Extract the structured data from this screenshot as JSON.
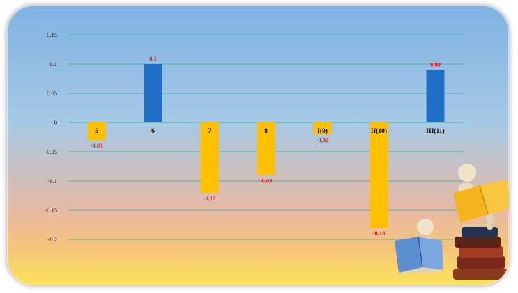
{
  "chart_data": {
    "type": "bar",
    "title": "",
    "xlabel": "",
    "ylabel": "",
    "ylim": [
      -0.2,
      0.15
    ],
    "y_ticks": [
      "0.15",
      "0.1",
      "0.05",
      "0",
      "-0.05",
      "-0.1",
      "-0.15",
      "-0.2"
    ],
    "grid": true,
    "categories": [
      "5",
      "6",
      "7",
      "8",
      "I(9)",
      "II(10)",
      "III(11)"
    ],
    "values": [
      -0.03,
      0.1,
      -0.12,
      -0.09,
      -0.02,
      -0.18,
      0.09
    ],
    "data_labels": [
      "-0,03",
      "0,1",
      "-0,12",
      "-0,09",
      "-0,02",
      "-0,18",
      "0,09"
    ],
    "colors": {
      "positive": "#1f6fc7",
      "negative": "#ffc000",
      "label": "#e02020",
      "grid": "#3aa890"
    }
  },
  "decoration": {
    "illustration": "reading-figures-on-books-icon"
  }
}
